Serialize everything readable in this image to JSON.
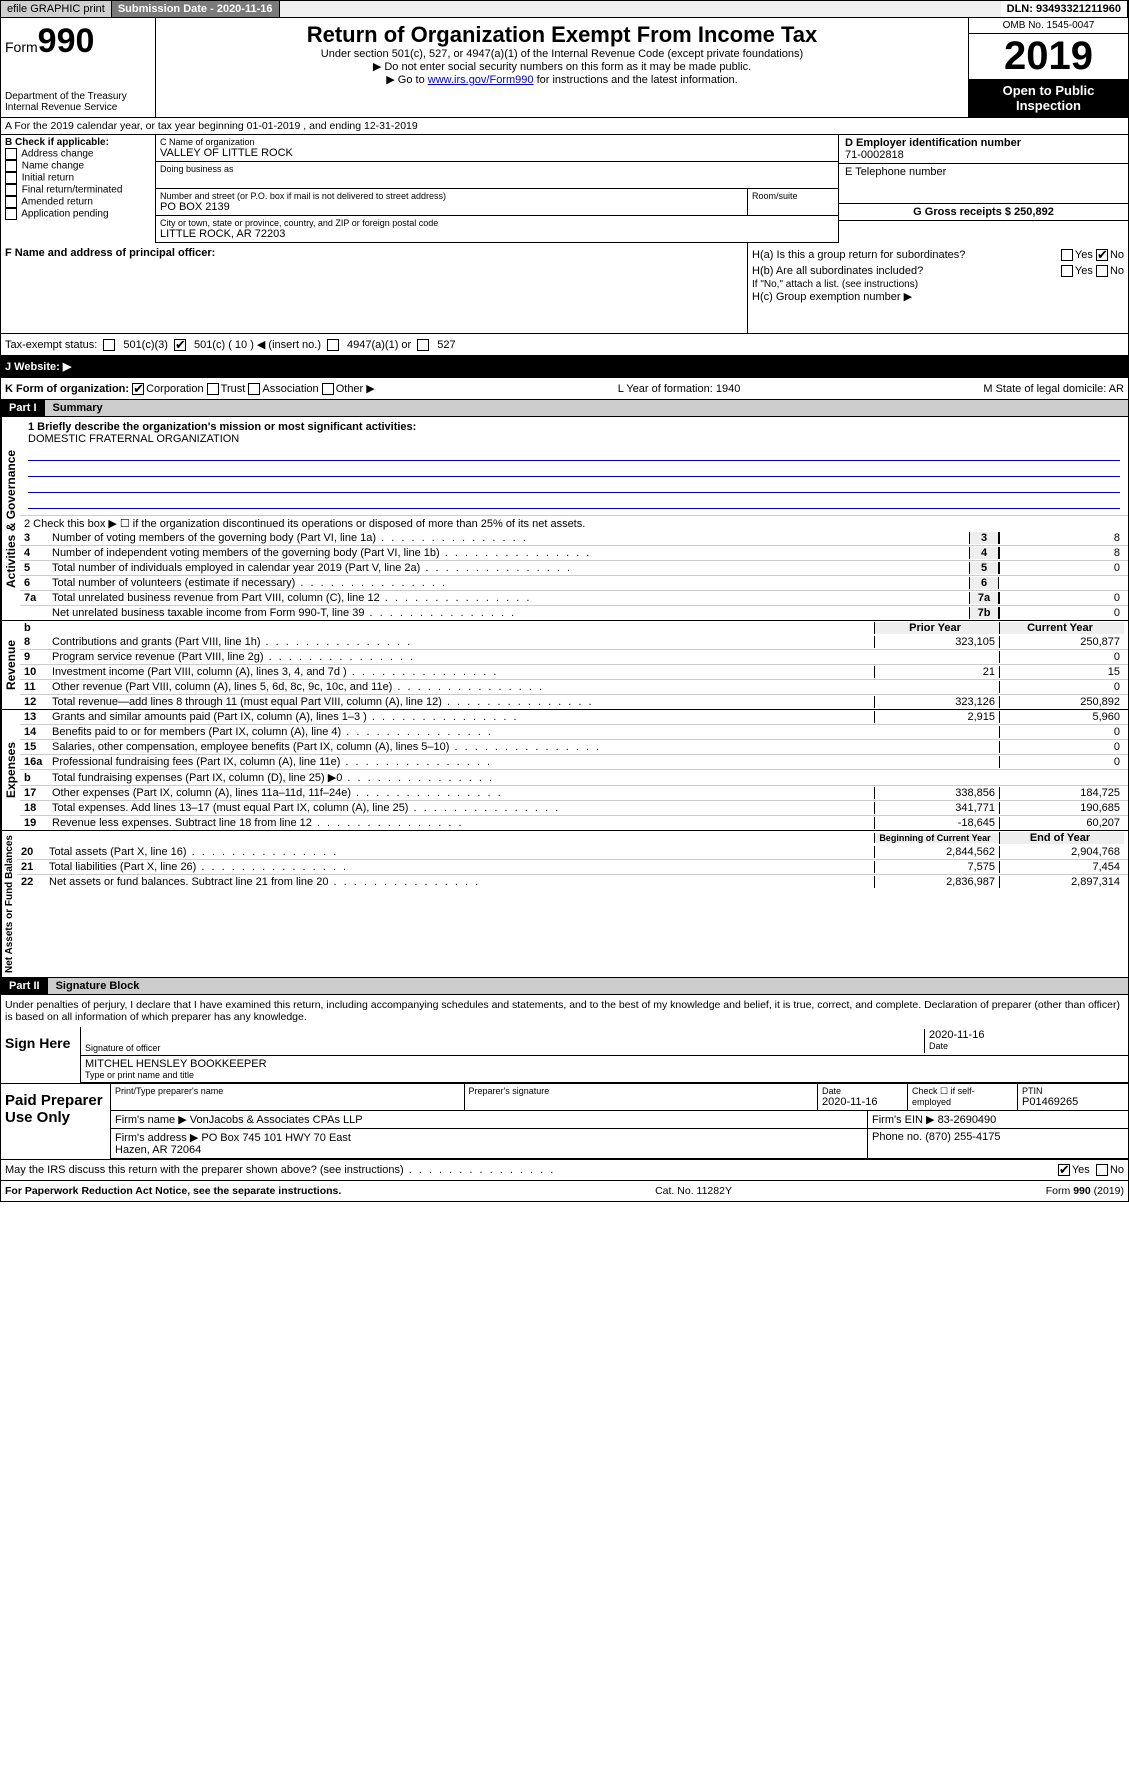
{
  "topbar": {
    "efile": "efile GRAPHIC print",
    "subdate_label": "Submission Date - 2020-11-16",
    "dln": "DLN: 93493321211960"
  },
  "header": {
    "form_label": "Form",
    "form_num": "990",
    "dept": "Department of the Treasury\nInternal Revenue Service",
    "title": "Return of Organization Exempt From Income Tax",
    "subtitle": "Under section 501(c), 527, or 4947(a)(1) of the Internal Revenue Code (except private foundations)",
    "note1": "▶ Do not enter social security numbers on this form as it may be made public.",
    "note2_pre": "▶ Go to ",
    "note2_link": "www.irs.gov/Form990",
    "note2_post": " for instructions and the latest information.",
    "omb": "OMB No. 1545-0047",
    "year": "2019",
    "open": "Open to Public Inspection"
  },
  "A": {
    "text": "A For the 2019 calendar year, or tax year beginning 01-01-2019   , and ending 12-31-2019"
  },
  "B": {
    "label": "B Check if applicable:",
    "items": [
      "Address change",
      "Name change",
      "Initial return",
      "Final return/terminated",
      "Amended return",
      "Application pending"
    ]
  },
  "C": {
    "name_label": "C Name of organization",
    "name": "VALLEY OF LITTLE ROCK",
    "dba_label": "Doing business as",
    "street_label": "Number and street (or P.O. box if mail is not delivered to street address)",
    "street": "PO BOX 2139",
    "room_label": "Room/suite",
    "city_label": "City or town, state or province, country, and ZIP or foreign postal code",
    "city": "LITTLE ROCK, AR  72203"
  },
  "D": {
    "label": "D Employer identification number",
    "value": "71-0002818"
  },
  "E": {
    "label": "E Telephone number"
  },
  "G": {
    "label": "G Gross receipts $ 250,892"
  },
  "F": {
    "label": "F  Name and address of principal officer:"
  },
  "H": {
    "a": "H(a)  Is this a group return for subordinates?",
    "b": "H(b)  Are all subordinates included?",
    "b_note": "If \"No,\" attach a list. (see instructions)",
    "c": "H(c)  Group exemption number ▶",
    "yes": "Yes",
    "no": "No"
  },
  "tax_status": {
    "label": "Tax-exempt status:",
    "opts": [
      "501(c)(3)",
      "501(c) ( 10 ) ◀ (insert no.)",
      "4947(a)(1) or",
      "527"
    ]
  },
  "J": {
    "label": "J   Website: ▶"
  },
  "K": {
    "label": "K Form of organization:",
    "opts": [
      "Corporation",
      "Trust",
      "Association",
      "Other ▶"
    ],
    "L": "L Year of formation: 1940",
    "M": "M State of legal domicile: AR"
  },
  "partI": {
    "hdr": "Part I",
    "title": "Summary",
    "line1_label": "1  Briefly describe the organization's mission or most significant activities:",
    "mission": "DOMESTIC FRATERNAL ORGANIZATION",
    "line2": "2   Check this box ▶ ☐  if the organization discontinued its operations or disposed of more than 25% of its net assets.",
    "rows_gov": [
      {
        "n": "3",
        "d": "Number of voting members of the governing body (Part VI, line 1a)",
        "nc": "3",
        "v": "8"
      },
      {
        "n": "4",
        "d": "Number of independent voting members of the governing body (Part VI, line 1b)",
        "nc": "4",
        "v": "8"
      },
      {
        "n": "5",
        "d": "Total number of individuals employed in calendar year 2019 (Part V, line 2a)",
        "nc": "5",
        "v": "0"
      },
      {
        "n": "6",
        "d": "Total number of volunteers (estimate if necessary)",
        "nc": "6",
        "v": ""
      },
      {
        "n": "7a",
        "d": "Total unrelated business revenue from Part VIII, column (C), line 12",
        "nc": "7a",
        "v": "0"
      },
      {
        "n": "",
        "d": "Net unrelated business taxable income from Form 990-T, line 39",
        "nc": "7b",
        "v": "0"
      }
    ],
    "prior_hdr": "Prior Year",
    "curr_hdr": "Current Year",
    "rows_rev": [
      {
        "n": "8",
        "d": "Contributions and grants (Part VIII, line 1h)",
        "p": "323,105",
        "c": "250,877"
      },
      {
        "n": "9",
        "d": "Program service revenue (Part VIII, line 2g)",
        "p": "",
        "c": "0"
      },
      {
        "n": "10",
        "d": "Investment income (Part VIII, column (A), lines 3, 4, and 7d )",
        "p": "21",
        "c": "15"
      },
      {
        "n": "11",
        "d": "Other revenue (Part VIII, column (A), lines 5, 6d, 8c, 9c, 10c, and 11e)",
        "p": "",
        "c": "0"
      },
      {
        "n": "12",
        "d": "Total revenue—add lines 8 through 11 (must equal Part VIII, column (A), line 12)",
        "p": "323,126",
        "c": "250,892"
      }
    ],
    "rows_exp": [
      {
        "n": "13",
        "d": "Grants and similar amounts paid (Part IX, column (A), lines 1–3 )",
        "p": "2,915",
        "c": "5,960"
      },
      {
        "n": "14",
        "d": "Benefits paid to or for members (Part IX, column (A), line 4)",
        "p": "",
        "c": "0"
      },
      {
        "n": "15",
        "d": "Salaries, other compensation, employee benefits (Part IX, column (A), lines 5–10)",
        "p": "",
        "c": "0"
      },
      {
        "n": "16a",
        "d": "Professional fundraising fees (Part IX, column (A), line 11e)",
        "p": "",
        "c": "0"
      },
      {
        "n": "b",
        "d": "Total fundraising expenses (Part IX, column (D), line 25) ▶0",
        "p": "",
        "c": "",
        "shade": true
      },
      {
        "n": "17",
        "d": "Other expenses (Part IX, column (A), lines 11a–11d, 11f–24e)",
        "p": "338,856",
        "c": "184,725"
      },
      {
        "n": "18",
        "d": "Total expenses. Add lines 13–17 (must equal Part IX, column (A), line 25)",
        "p": "341,771",
        "c": "190,685"
      },
      {
        "n": "19",
        "d": "Revenue less expenses. Subtract line 18 from line 12",
        "p": "-18,645",
        "c": "60,207"
      }
    ],
    "beg_hdr": "Beginning of Current Year",
    "end_hdr": "End of Year",
    "rows_net": [
      {
        "n": "20",
        "d": "Total assets (Part X, line 16)",
        "p": "2,844,562",
        "c": "2,904,768"
      },
      {
        "n": "21",
        "d": "Total liabilities (Part X, line 26)",
        "p": "7,575",
        "c": "7,454"
      },
      {
        "n": "22",
        "d": "Net assets or fund balances. Subtract line 21 from line 20",
        "p": "2,836,987",
        "c": "2,897,314"
      }
    ],
    "vlabels": {
      "gov": "Activities & Governance",
      "rev": "Revenue",
      "exp": "Expenses",
      "net": "Net Assets or Fund Balances"
    }
  },
  "partII": {
    "hdr": "Part II",
    "title": "Signature Block",
    "penalty": "Under penalties of perjury, I declare that I have examined this return, including accompanying schedules and statements, and to the best of my knowledge and belief, it is true, correct, and complete. Declaration of preparer (other than officer) is based on all information of which preparer has any knowledge.",
    "sign_here": "Sign Here",
    "sig_officer": "Signature of officer",
    "sig_date": "2020-11-16",
    "date_label": "Date",
    "officer_name": "MITCHEL HENSLEY BOOKKEEPER",
    "type_label": "Type or print name and title",
    "paid": "Paid Preparer Use Only",
    "p_name_label": "Print/Type preparer's name",
    "p_sig_label": "Preparer's signature",
    "p_date_label": "Date",
    "p_date": "2020-11-16",
    "p_check": "Check ☐ if self-employed",
    "ptin_label": "PTIN",
    "ptin": "P01469265",
    "firm_name_label": "Firm's name    ▶",
    "firm_name": "VonJacobs & Associates CPAs LLP",
    "firm_ein_label": "Firm's EIN ▶",
    "firm_ein": "83-2690490",
    "firm_addr_label": "Firm's address ▶",
    "firm_addr": "PO Box 745 101 HWY 70 East\nHazen, AR  72064",
    "phone_label": "Phone no.",
    "phone": "(870) 255-4175",
    "discuss": "May the IRS discuss this return with the preparer shown above? (see instructions)",
    "yes": "Yes",
    "no": "No"
  },
  "footer": {
    "pra": "For Paperwork Reduction Act Notice, see the separate instructions.",
    "cat": "Cat. No. 11282Y",
    "form": "Form 990 (2019)"
  }
}
